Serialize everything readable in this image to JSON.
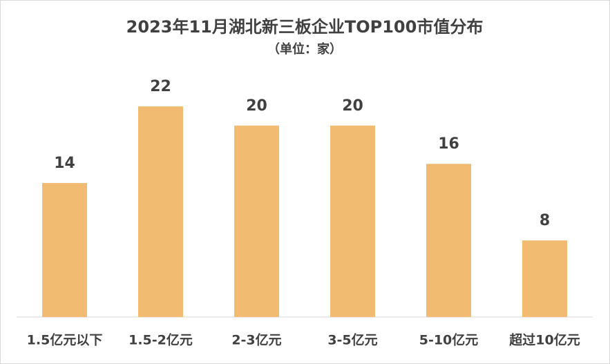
{
  "chart_data": {
    "type": "bar",
    "title": "2023年11月湖北新三板企业TOP100市值分布",
    "subtitle": "（单位：家）",
    "categories": [
      "1.5亿元以下",
      "1.5-2亿元",
      "2-3亿元",
      "3-5亿元",
      "5-10亿元",
      "超过10亿元"
    ],
    "values": [
      14,
      22,
      20,
      20,
      16,
      8
    ],
    "color": "#f2bb72"
  }
}
